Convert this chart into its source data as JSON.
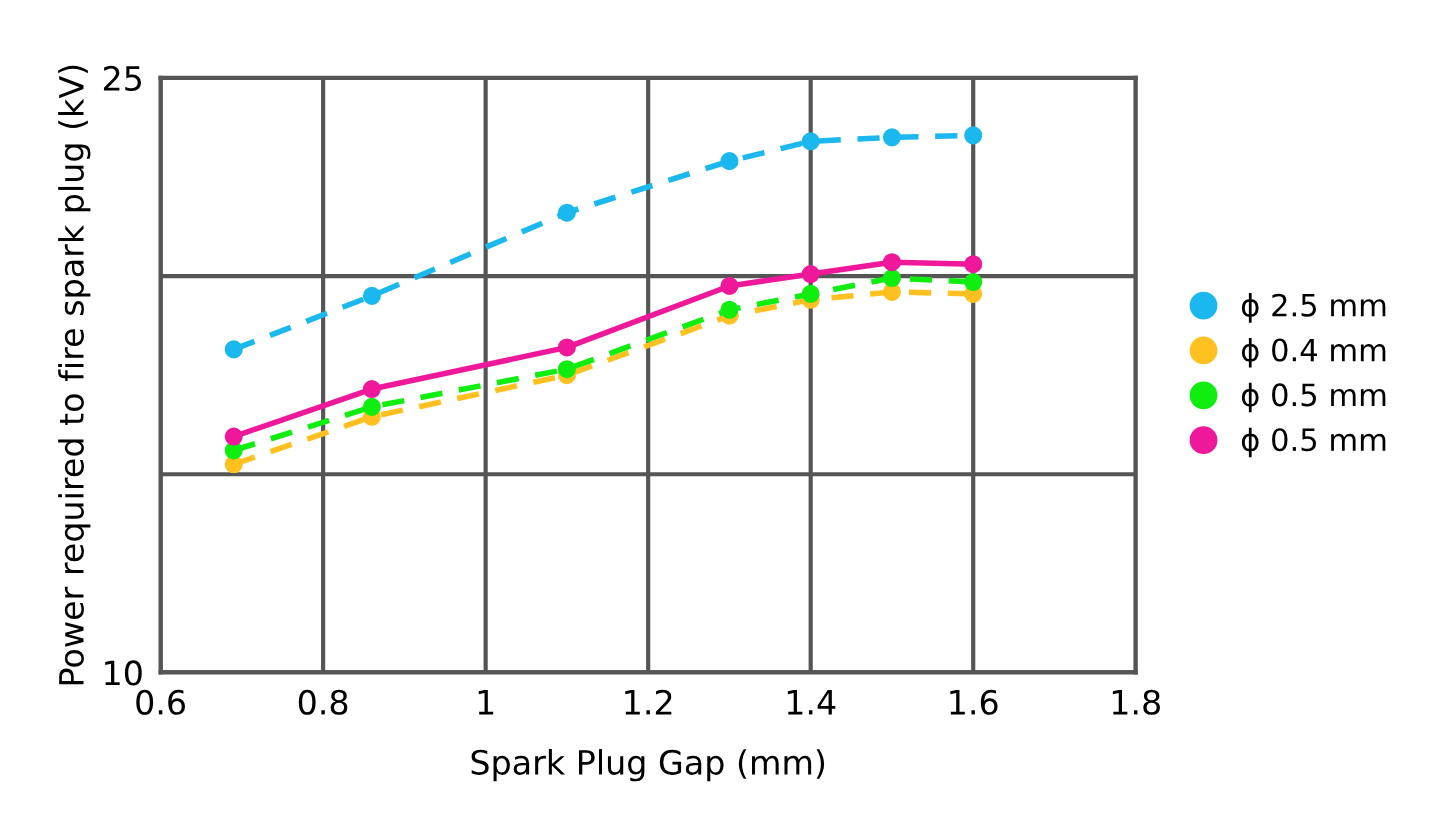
{
  "chart_data": {
    "type": "line",
    "xlabel": "Spark Plug Gap (mm)",
    "ylabel": "Power required to fire spark plug (kV)",
    "x": [
      0.69,
      0.86,
      1.1,
      1.3,
      1.4,
      1.5,
      1.6
    ],
    "xlim": [
      0.6,
      1.8
    ],
    "xticks": [
      0.6,
      0.8,
      1,
      1.2,
      1.4,
      1.6,
      1.8
    ],
    "ylim": [
      10,
      25
    ],
    "yticks": [
      10,
      {
        "value": 15,
        "label": null
      },
      {
        "value": 20,
        "label": null
      },
      25
    ],
    "grid": true,
    "legend": "right",
    "marker": "circle",
    "series": [
      {
        "name": "ϕ 2.5 mm",
        "color": "#1ab8ef",
        "line_style": "dashed",
        "values": [
          18.15,
          19.5,
          21.6,
          22.9,
          23.4,
          23.5,
          23.55
        ]
      },
      {
        "name": "ϕ 0.4 mm",
        "color": "#ffc020",
        "line_style": "dashed",
        "values": [
          15.25,
          16.45,
          17.5,
          19.0,
          19.4,
          19.6,
          19.55
        ]
      },
      {
        "name": "ϕ 0.5 mm",
        "color": "#10ee10",
        "line_style": "dashed",
        "values": [
          15.6,
          16.7,
          17.65,
          19.15,
          19.55,
          19.95,
          19.85
        ]
      },
      {
        "name": "ϕ 0.5 mm",
        "color": "#f0189a",
        "line_style": "solid",
        "values": [
          15.95,
          17.15,
          18.2,
          19.75,
          20.05,
          20.35,
          20.3
        ]
      }
    ]
  }
}
